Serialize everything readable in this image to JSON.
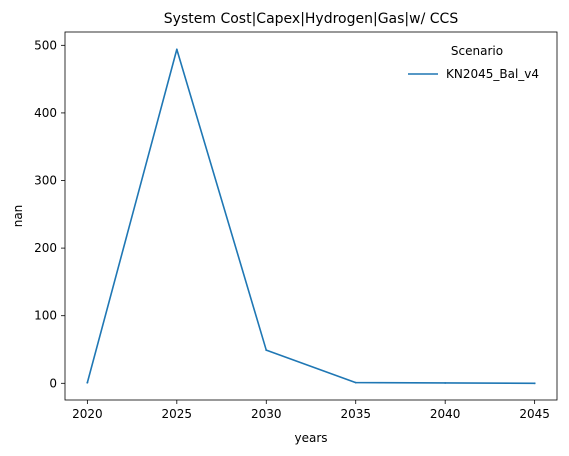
{
  "chart_data": {
    "type": "line",
    "title": "System Cost|Capex|Hydrogen|Gas|w/ CCS",
    "xlabel": "years",
    "ylabel": "nan",
    "x": [
      2020,
      2025,
      2030,
      2035,
      2040,
      2045
    ],
    "series": [
      {
        "name": "KN2045_Bal_v4",
        "color": "#1f77b4",
        "values": [
          1,
          494,
          49,
          1,
          0.5,
          0
        ]
      }
    ],
    "xlim": [
      2018.75,
      2046.25
    ],
    "ylim": [
      -24.7,
      519.7
    ],
    "xticks": [
      2020,
      2025,
      2030,
      2035,
      2040,
      2045
    ],
    "xtick_labels": [
      "2020",
      "2025",
      "2030",
      "2035",
      "2040",
      "2045"
    ],
    "yticks": [
      0,
      100,
      200,
      300,
      400,
      500
    ],
    "ytick_labels": [
      "0",
      "100",
      "200",
      "300",
      "400",
      "500"
    ],
    "grid": false,
    "legend": {
      "title": "Scenario",
      "placement": "top-right"
    }
  }
}
